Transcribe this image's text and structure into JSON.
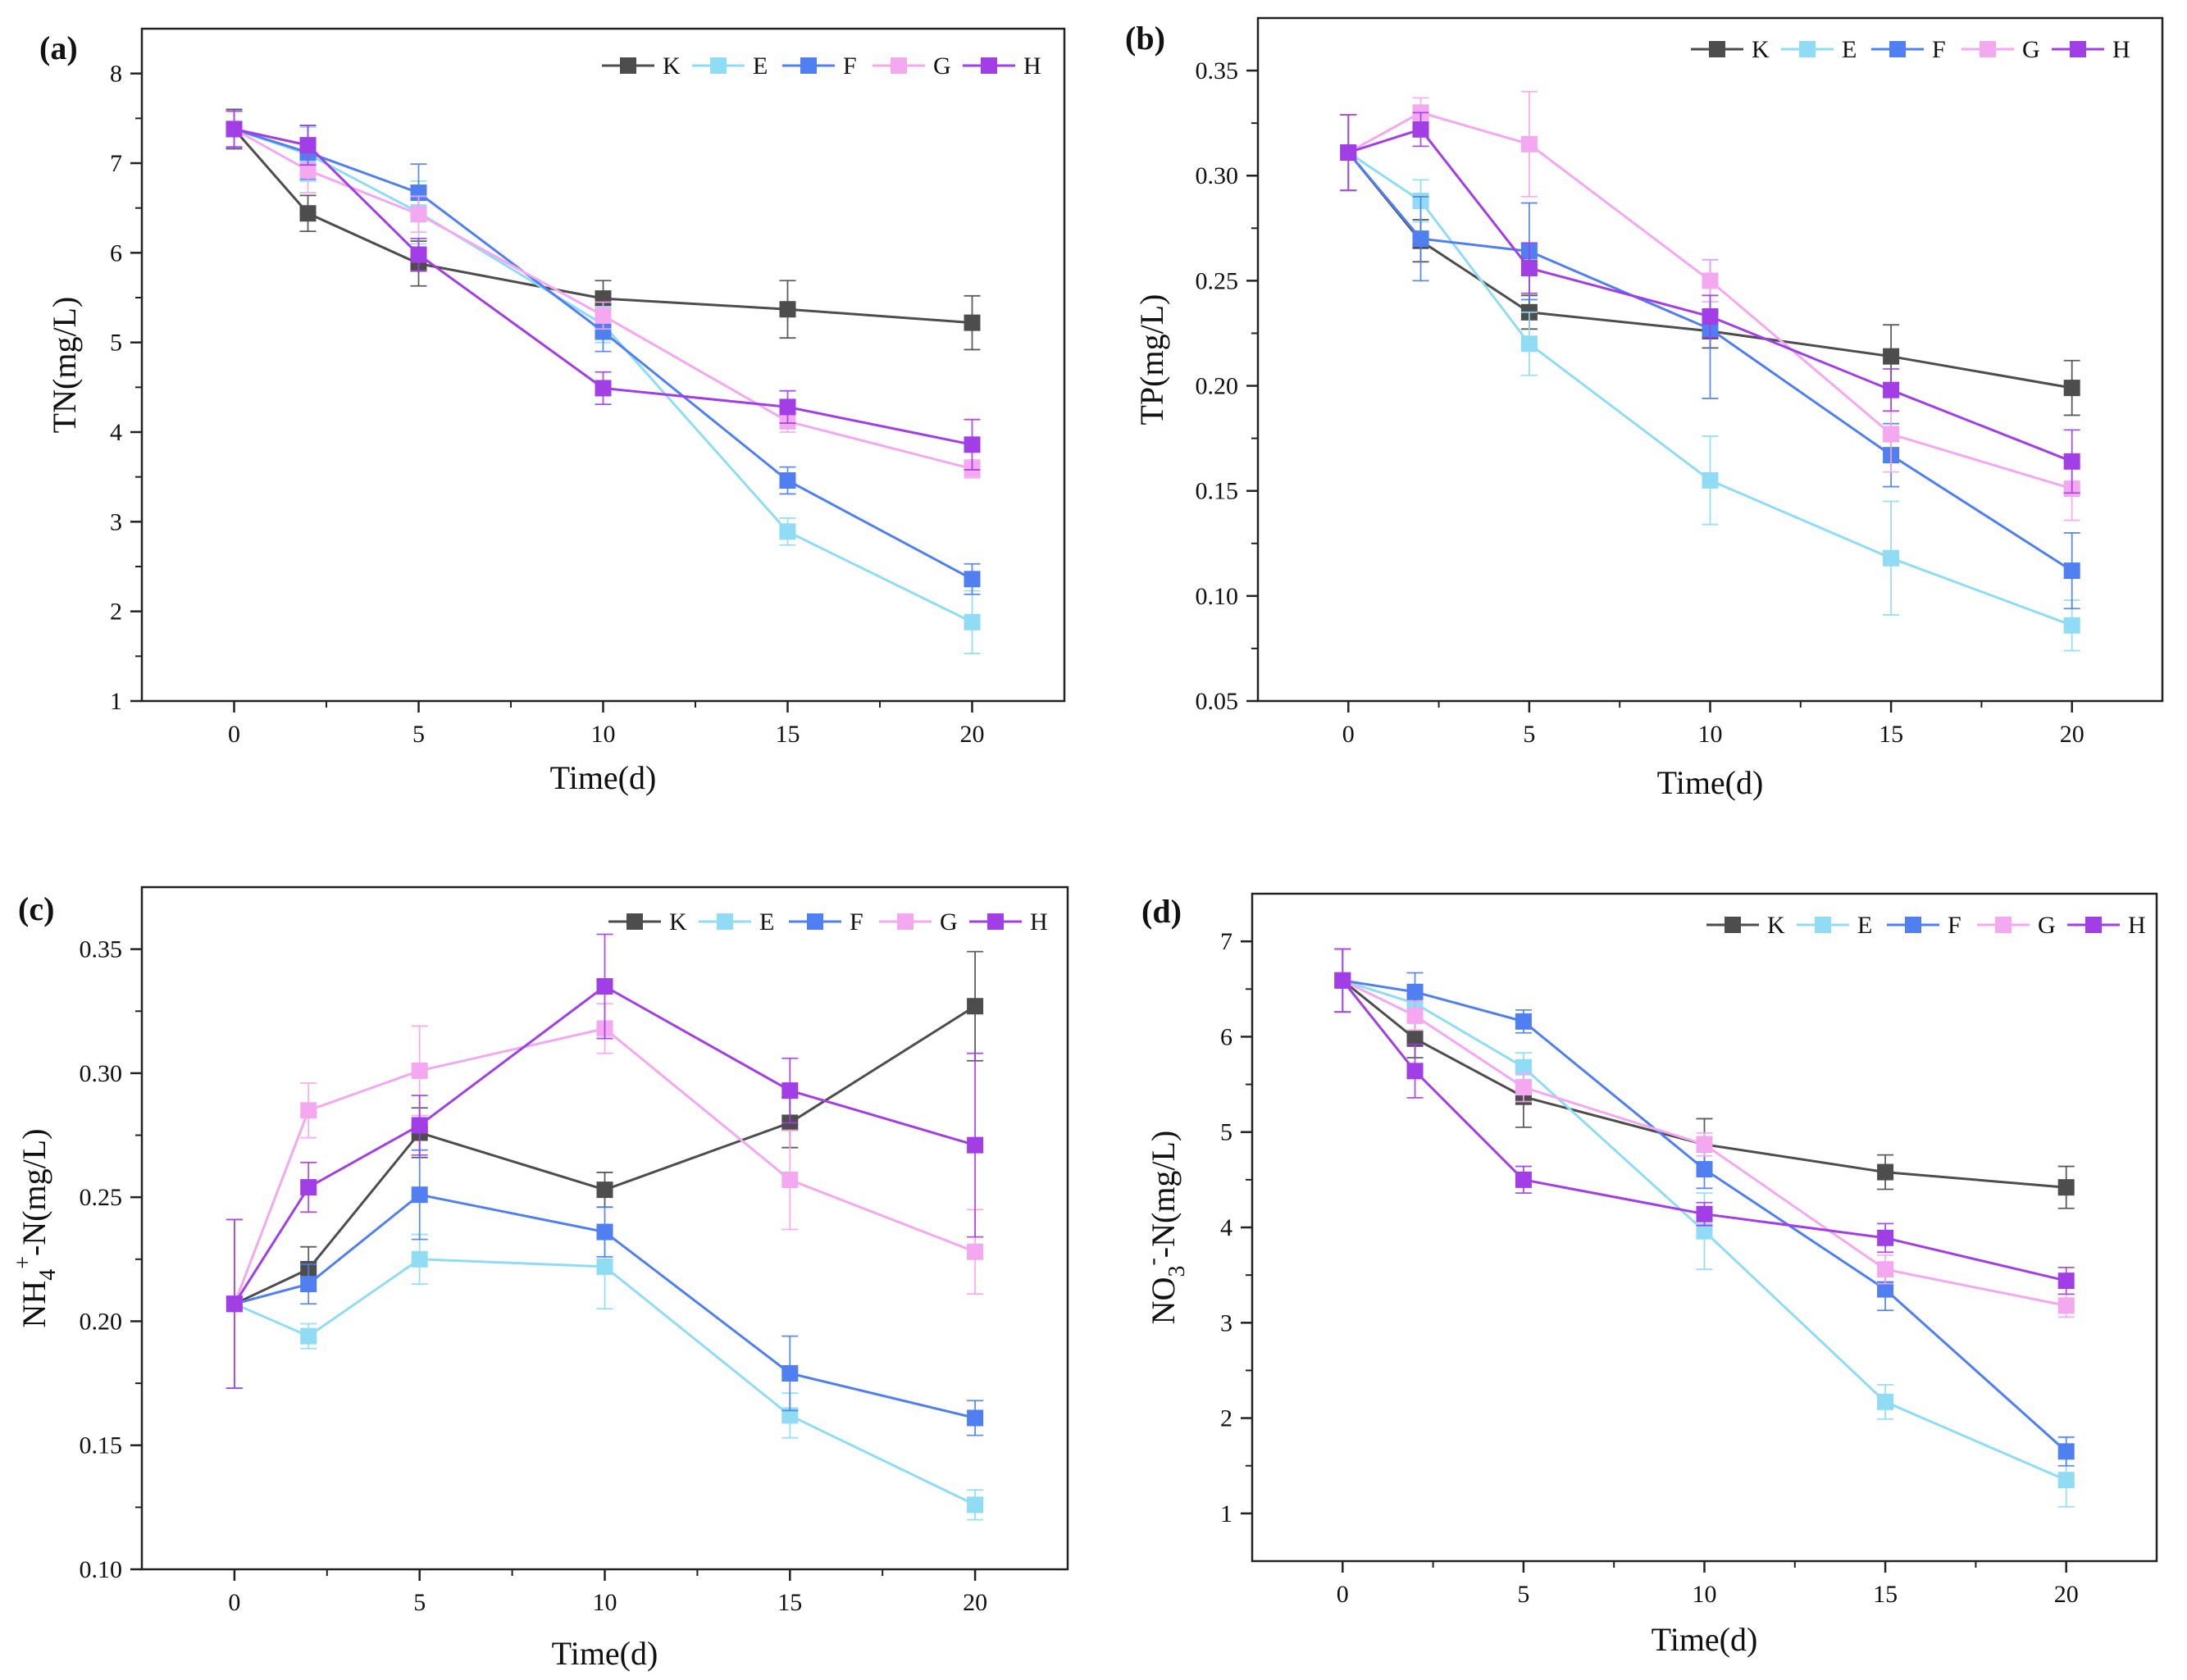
{
  "figure": {
    "colors": {
      "K": "#4d4d4d",
      "E": "#8fdcf4",
      "F": "#4f7ff0",
      "G": "#f4a8f0",
      "H": "#a23ee6"
    }
  },
  "chart_data": [
    {
      "type": "line",
      "panel": "(a)",
      "title": "",
      "xlabel": "Time(d)",
      "ylabel": "TN(mg/L)",
      "xlim": [
        -2.5,
        22.5
      ],
      "ylim": [
        1,
        8.5
      ],
      "xticks": [
        0,
        5,
        10,
        15,
        20
      ],
      "yticks": [
        1,
        2,
        3,
        4,
        5,
        6,
        7,
        8
      ],
      "ytick_labels": [
        "1",
        "2",
        "3",
        "4",
        "5",
        "6",
        "7",
        "8"
      ],
      "x": [
        0,
        2,
        5,
        10,
        15,
        20
      ],
      "legend": "top-right",
      "series": [
        {
          "name": "K",
          "values": [
            7.38,
            6.44,
            5.88,
            5.49,
            5.37,
            5.22
          ],
          "errors": [
            0.22,
            0.2,
            0.25,
            0.2,
            0.32,
            0.3
          ]
        },
        {
          "name": "E",
          "values": [
            7.38,
            7.1,
            6.45,
            5.2,
            2.89,
            1.88
          ],
          "errors": [
            0.2,
            0.3,
            0.35,
            0.2,
            0.15,
            0.35
          ]
        },
        {
          "name": "F",
          "values": [
            7.38,
            7.12,
            6.67,
            5.12,
            3.46,
            2.36
          ],
          "errors": [
            0.2,
            0.3,
            0.32,
            0.22,
            0.15,
            0.17
          ]
        },
        {
          "name": "G",
          "values": [
            7.38,
            6.92,
            6.43,
            5.3,
            4.12,
            3.59
          ],
          "errors": [
            0.2,
            0.25,
            0.2,
            0.15,
            0.12,
            0.1
          ]
        },
        {
          "name": "H",
          "values": [
            7.38,
            7.2,
            5.98,
            4.49,
            4.28,
            3.86
          ],
          "errors": [
            0.2,
            0.22,
            0.18,
            0.18,
            0.18,
            0.28
          ]
        }
      ]
    },
    {
      "type": "line",
      "panel": "(b)",
      "title": "",
      "xlabel": "Time(d)",
      "ylabel": "TP(mg/L)",
      "xlim": [
        -2.5,
        22.5
      ],
      "ylim": [
        0.05,
        0.375
      ],
      "xticks": [
        0,
        5,
        10,
        15,
        20
      ],
      "yticks": [
        0.05,
        0.1,
        0.15,
        0.2,
        0.25,
        0.3,
        0.35
      ],
      "ytick_labels": [
        "0.05",
        "0.10",
        "0.15",
        "0.20",
        "0.25",
        "0.30",
        "0.35"
      ],
      "x": [
        0,
        2,
        5,
        10,
        15,
        20
      ],
      "legend": "top-right",
      "series": [
        {
          "name": "K",
          "values": [
            0.311,
            0.269,
            0.235,
            0.226,
            0.214,
            0.199
          ],
          "errors": [
            0.018,
            0.01,
            0.008,
            0.008,
            0.015,
            0.013
          ]
        },
        {
          "name": "E",
          "values": [
            0.311,
            0.288,
            0.22,
            0.155,
            0.118,
            0.086
          ],
          "errors": [
            0.018,
            0.01,
            0.015,
            0.021,
            0.027,
            0.012
          ]
        },
        {
          "name": "F",
          "values": [
            0.311,
            0.27,
            0.264,
            0.227,
            0.167,
            0.112
          ],
          "errors": [
            0.018,
            0.02,
            0.023,
            0.033,
            0.015,
            0.018
          ]
        },
        {
          "name": "G",
          "values": [
            0.311,
            0.33,
            0.315,
            0.25,
            0.177,
            0.151
          ],
          "errors": [
            0.018,
            0.007,
            0.025,
            0.01,
            0.018,
            0.015
          ]
        },
        {
          "name": "H",
          "values": [
            0.311,
            0.322,
            0.256,
            0.233,
            0.198,
            0.164
          ],
          "errors": [
            0.018,
            0.008,
            0.012,
            0.01,
            0.01,
            0.015
          ]
        }
      ]
    },
    {
      "type": "line",
      "panel": "(c)",
      "title": "",
      "xlabel": "Time(d)",
      "ylabel": "NH4+-N(mg/L)",
      "ylabel_parts": {
        "pre": "NH",
        "sub": "4",
        "sup": "+",
        "post": "-N(mg/L)"
      },
      "xlim": [
        -2.5,
        22.5
      ],
      "ylim": [
        0.1,
        0.375
      ],
      "xticks": [
        0,
        5,
        10,
        15,
        20
      ],
      "yticks": [
        0.1,
        0.15,
        0.2,
        0.25,
        0.3,
        0.35
      ],
      "ytick_labels": [
        "0.10",
        "0.15",
        "0.20",
        "0.25",
        "0.30",
        "0.35"
      ],
      "x": [
        0,
        2,
        5,
        10,
        15,
        20
      ],
      "legend": "top-right",
      "series": [
        {
          "name": "K",
          "values": [
            0.207,
            0.221,
            0.276,
            0.253,
            0.28,
            0.327
          ],
          "errors": [
            0.034,
            0.009,
            0.01,
            0.007,
            0.01,
            0.022
          ]
        },
        {
          "name": "E",
          "values": [
            0.207,
            0.194,
            0.225,
            0.222,
            0.162,
            0.126
          ],
          "errors": [
            0.034,
            0.005,
            0.01,
            0.017,
            0.009,
            0.006
          ]
        },
        {
          "name": "F",
          "values": [
            0.207,
            0.215,
            0.251,
            0.236,
            0.179,
            0.161
          ],
          "errors": [
            0.034,
            0.008,
            0.018,
            0.01,
            0.015,
            0.007
          ]
        },
        {
          "name": "G",
          "values": [
            0.207,
            0.285,
            0.301,
            0.318,
            0.257,
            0.228
          ],
          "errors": [
            0.034,
            0.011,
            0.018,
            0.01,
            0.02,
            0.017
          ]
        },
        {
          "name": "H",
          "values": [
            0.207,
            0.254,
            0.279,
            0.335,
            0.293,
            0.271
          ],
          "errors": [
            0.034,
            0.01,
            0.012,
            0.021,
            0.013,
            0.037
          ]
        }
      ]
    },
    {
      "type": "line",
      "panel": "(d)",
      "title": "",
      "xlabel": "Time(d)",
      "ylabel": "NO3--N(mg/L)",
      "ylabel_parts": {
        "pre": "NO",
        "sub": "3",
        "sup": "-",
        "post": "-N(mg/L)"
      },
      "xlim": [
        -2.5,
        22.5
      ],
      "ylim": [
        0.5,
        7.5
      ],
      "xticks": [
        0,
        5,
        10,
        15,
        20
      ],
      "yticks": [
        1,
        2,
        3,
        4,
        5,
        6,
        7
      ],
      "ytick_labels": [
        "1",
        "2",
        "3",
        "4",
        "5",
        "6",
        "7"
      ],
      "x": [
        0,
        2,
        5,
        10,
        15,
        20
      ],
      "legend": "top-right",
      "series": [
        {
          "name": "K",
          "values": [
            6.59,
            5.98,
            5.37,
            4.87,
            4.58,
            4.42
          ],
          "errors": [
            0.33,
            0.2,
            0.32,
            0.27,
            0.18,
            0.22
          ]
        },
        {
          "name": "E",
          "values": [
            6.59,
            6.35,
            5.68,
            3.96,
            2.17,
            1.35
          ],
          "errors": [
            0.33,
            0.18,
            0.15,
            0.4,
            0.18,
            0.28
          ]
        },
        {
          "name": "F",
          "values": [
            6.59,
            6.47,
            6.16,
            4.61,
            3.35,
            1.65
          ],
          "errors": [
            0.33,
            0.2,
            0.12,
            0.2,
            0.22,
            0.15
          ]
        },
        {
          "name": "G",
          "values": [
            6.59,
            6.22,
            5.47,
            4.87,
            3.56,
            3.18
          ],
          "errors": [
            0.33,
            0.15,
            0.15,
            0.12,
            0.15,
            0.12
          ]
        },
        {
          "name": "H",
          "values": [
            6.59,
            5.64,
            4.5,
            4.14,
            3.89,
            3.44
          ],
          "errors": [
            0.33,
            0.28,
            0.14,
            0.12,
            0.15,
            0.14
          ]
        }
      ]
    }
  ]
}
